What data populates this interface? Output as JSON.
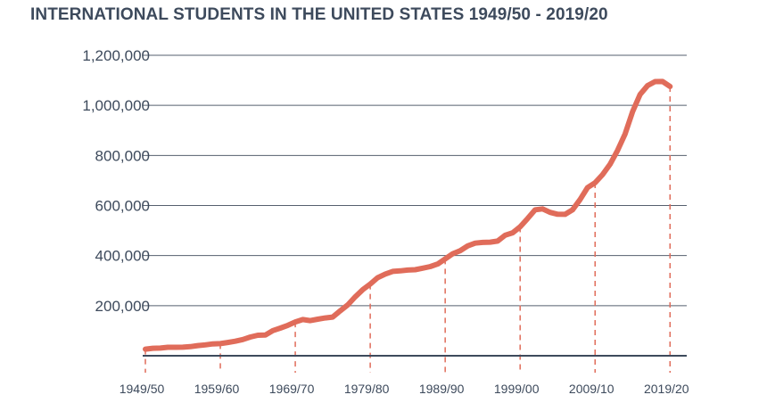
{
  "chart_data": {
    "type": "line",
    "title": "INTERNATIONAL STUDENTS IN THE UNITED STATES 1949/50 - 2019/20",
    "xlabel": "",
    "ylabel": "",
    "ylim": [
      0,
      1200000
    ],
    "yticks": [
      200000,
      400000,
      600000,
      800000,
      1000000,
      1200000
    ],
    "ytick_labels": [
      "200,000",
      "400,000",
      "600,000",
      "800,000",
      "1,000,000",
      "1,200,000"
    ],
    "xticks": [
      1949,
      1959,
      1969,
      1979,
      1989,
      1999,
      2009,
      2019
    ],
    "xtick_labels": [
      "1949/50",
      "1959/60",
      "1969/70",
      "1979/80",
      "1989/90",
      "1999/00",
      "2009/10",
      "2019/20"
    ],
    "grid": "horizontal",
    "colors": {
      "line": "#e06c5a",
      "grid": "#555f6e",
      "axis": "#3d4a5c",
      "text": "#3d4a5c"
    },
    "series": [
      {
        "x": [
          1949,
          1950,
          1951,
          1952,
          1953,
          1954,
          1955,
          1956,
          1957,
          1958,
          1959,
          1960,
          1961,
          1962,
          1963,
          1964,
          1965,
          1966,
          1967,
          1968,
          1969,
          1970,
          1971,
          1972,
          1973,
          1974,
          1975,
          1976,
          1977,
          1978,
          1979,
          1980,
          1981,
          1982,
          1983,
          1984,
          1985,
          1986,
          1987,
          1988,
          1989,
          1990,
          1991,
          1992,
          1993,
          1994,
          1995,
          1996,
          1997,
          1998,
          1999,
          2000,
          2001,
          2002,
          2003,
          2004,
          2005,
          2006,
          2007,
          2008,
          2009,
          2010,
          2011,
          2012,
          2013,
          2014,
          2015,
          2016,
          2017,
          2018,
          2019
        ],
        "values": [
          26433,
          29813,
          30462,
          33675,
          33833,
          34232,
          36494,
          40666,
          43391,
          47245,
          48486,
          53107,
          58086,
          64705,
          74814,
          82045,
          82709,
          100262,
          110315,
          121362,
          134959,
          144708,
          140126,
          146097,
          151066,
          154580,
          179344,
          203068,
          235509,
          263938,
          286343,
          311882,
          326299,
          336985,
          338894,
          342113,
          343777,
          349609,
          356187,
          366354,
          386851,
          407529,
          419585,
          438618,
          449749,
          452635,
          453787,
          457984,
          481280,
          490933,
          514723,
          547867,
          582996,
          586323,
          572509,
          565039,
          564766,
          582984,
          623805,
          671616,
          690923,
          723277,
          764495,
          819644,
          886052,
          974926,
          1043839,
          1078822,
          1094792,
          1095299,
          1075496
        ]
      }
    ]
  }
}
